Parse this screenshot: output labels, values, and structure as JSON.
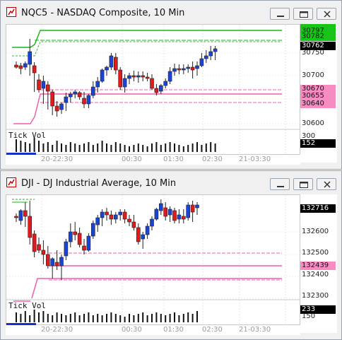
{
  "charts": [
    {
      "title": "NQC5 - NASDAQ Composite, 10 Min",
      "x_ticks": [
        "20-22:30",
        "00:30",
        "01:30",
        "02:30",
        "21-03:30"
      ],
      "price_labels": [
        "30750",
        "30700",
        "30600"
      ],
      "green_badges": [
        "30797",
        "30782"
      ],
      "last_badge": "30762",
      "pink_badges": [
        "30670",
        "30655",
        "30640"
      ],
      "volume_label": "Tick Vol",
      "volume_scale": "300",
      "volume_badge": "152"
    },
    {
      "title": "DJI - DJ Industrial Average, 10 Min",
      "x_ticks": [
        "20-22:30",
        "00:30",
        "01:30",
        "02:30",
        "21-03:30"
      ],
      "price_labels": [
        "132600",
        "132500",
        "132400",
        "132300"
      ],
      "last_badge": "132716",
      "pink_badges": [
        "132439"
      ],
      "volume_label": "Tick Vol",
      "volume_scale": "150",
      "volume_badge": "233"
    }
  ],
  "colors": {
    "up": "#1a44d8",
    "down": "#e01b1b",
    "pink": "#ef5fae",
    "green": "#1cb51c",
    "badge_pink": "#f78cc3",
    "badge_green": "#18c418"
  }
}
